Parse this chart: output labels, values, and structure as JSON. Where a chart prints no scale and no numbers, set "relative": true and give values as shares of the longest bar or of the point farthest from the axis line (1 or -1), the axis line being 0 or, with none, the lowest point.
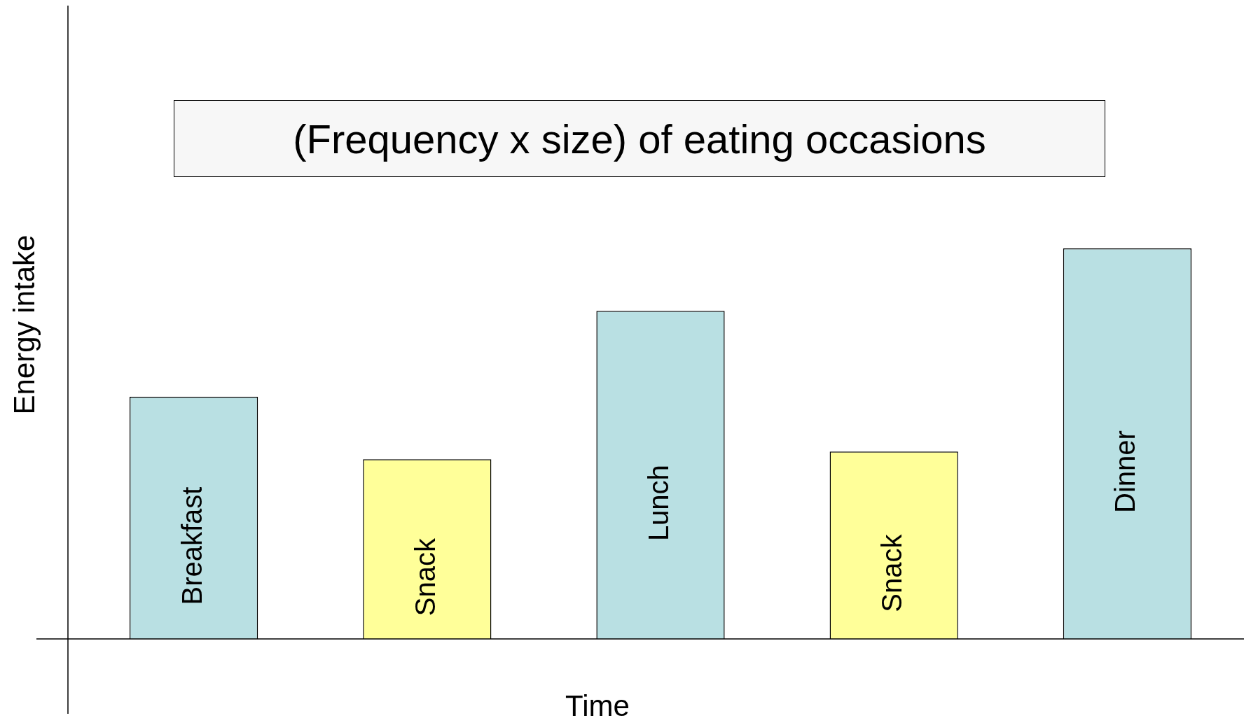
{
  "chart_data": {
    "type": "bar",
    "title": "(Frequency x size) of eating occasions",
    "xlabel": "Time",
    "ylabel": "Energy intake",
    "categories": [
      "Breakfast",
      "Snack",
      "Lunch",
      "Snack",
      "Dinner"
    ],
    "values": [
      0.62,
      0.46,
      0.84,
      0.48,
      1
    ],
    "colors": [
      "#b9e0e3",
      "#ffff99",
      "#b9e0e3",
      "#ffff99",
      "#b9e0e3"
    ],
    "relative": true
  }
}
